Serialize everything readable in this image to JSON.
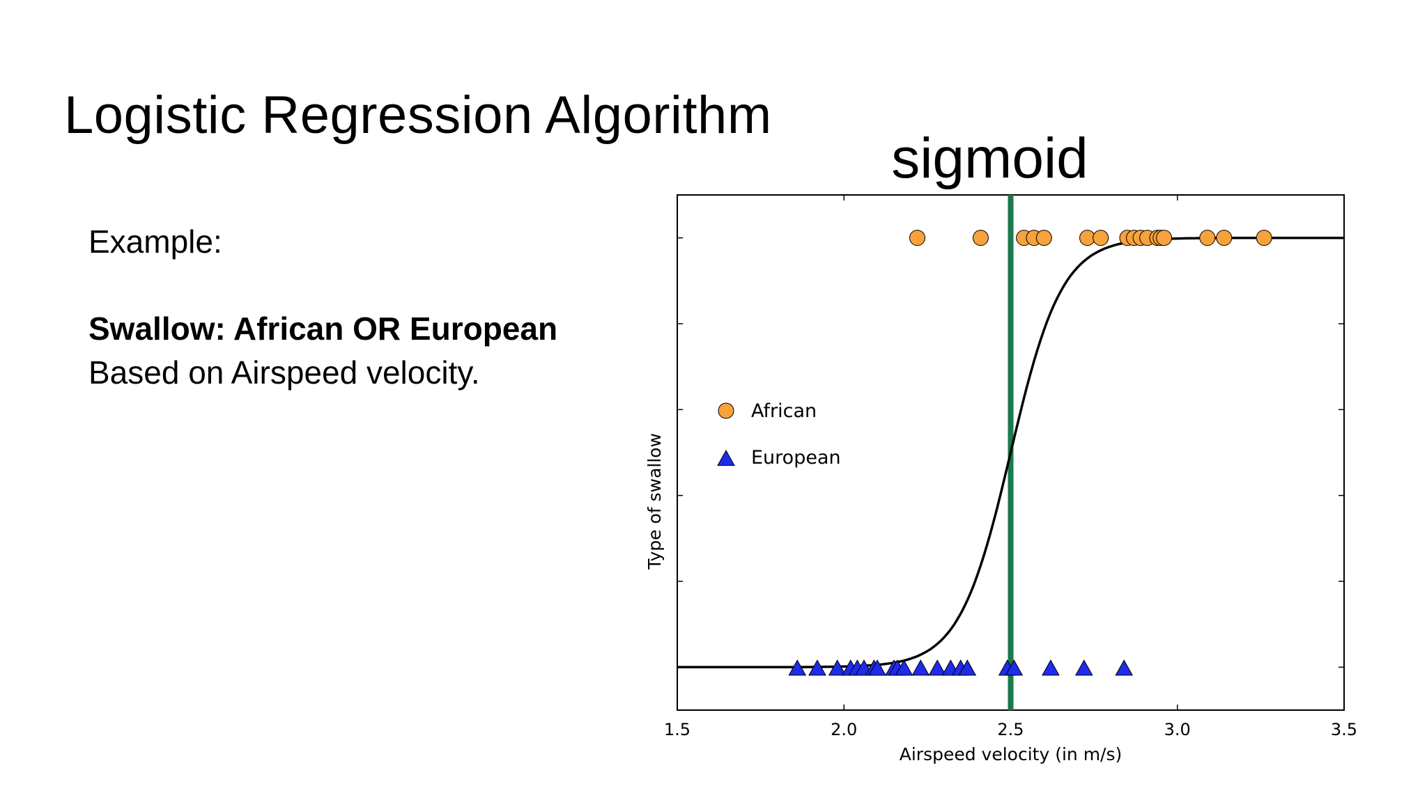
{
  "slide": {
    "title": "Logistic Regression Algorithm",
    "example_label": "Example:",
    "heading": "Swallow: African OR European",
    "subtext": "Based on Airspeed velocity."
  },
  "chart_data": {
    "type": "scatter",
    "title": "sigmoid",
    "xlabel": "Airspeed velocity (in m/s)",
    "ylabel": "Type of swallow",
    "xlim": [
      1.5,
      3.5
    ],
    "ylim": [
      -0.1,
      1.1
    ],
    "x_ticks": [
      "1.5",
      "2.0",
      "2.5",
      "3.0",
      "3.5"
    ],
    "legend_position": "center-left",
    "threshold_x": 2.5,
    "threshold_color": "#1a7a4c",
    "curve": {
      "type": "sigmoid",
      "center": 2.5,
      "steepness": 13,
      "color": "#000000"
    },
    "series": [
      {
        "name": "African",
        "marker": "circle",
        "color": "#f7a23a",
        "y": 1,
        "x": [
          2.22,
          2.41,
          2.54,
          2.57,
          2.6,
          2.73,
          2.77,
          2.85,
          2.87,
          2.89,
          2.91,
          2.94,
          2.95,
          2.96,
          3.09,
          3.14,
          3.26
        ]
      },
      {
        "name": "European",
        "marker": "triangle",
        "color": "#1f2bea",
        "y": 0,
        "x": [
          1.86,
          1.92,
          1.98,
          2.02,
          2.04,
          2.06,
          2.09,
          2.1,
          2.15,
          2.16,
          2.18,
          2.23,
          2.28,
          2.32,
          2.35,
          2.37,
          2.49,
          2.51,
          2.62,
          2.72,
          2.84
        ]
      }
    ]
  }
}
